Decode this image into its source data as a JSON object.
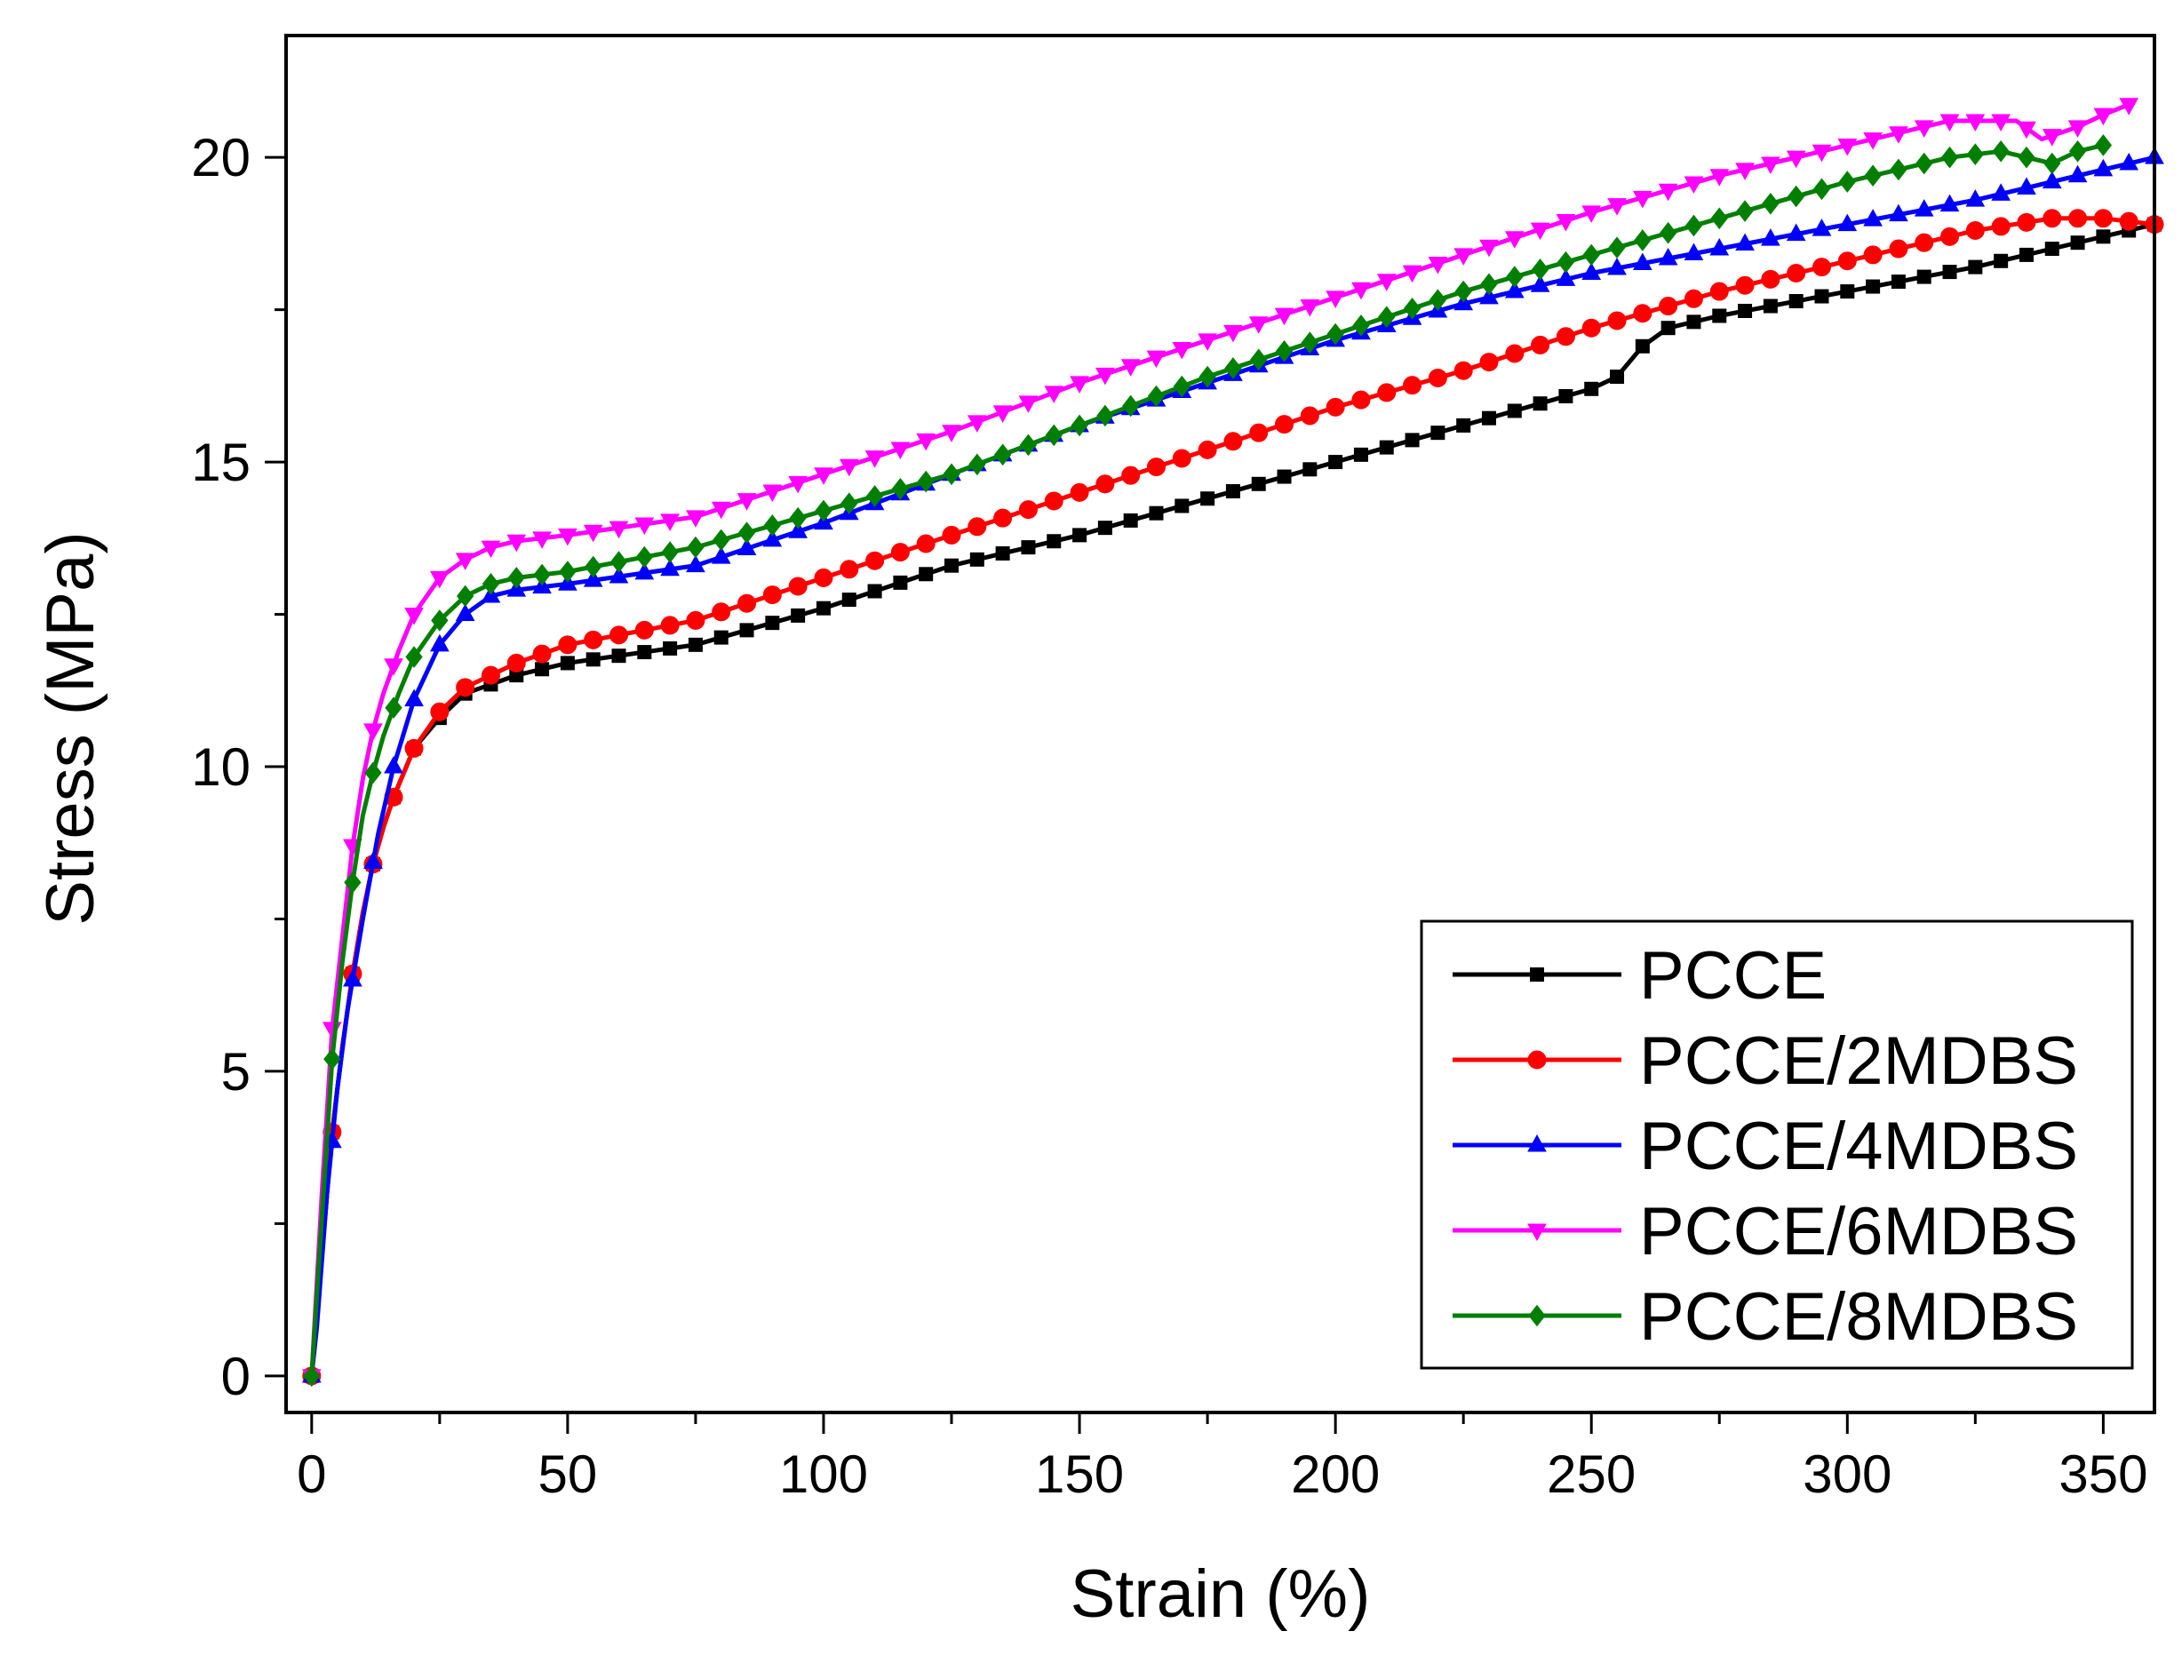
{
  "chart_data": {
    "type": "line",
    "xlabel": "Strain (%)",
    "ylabel": "Stress (MPa)",
    "xlim": [
      -5,
      360
    ],
    "ylim": [
      -0.6,
      22
    ],
    "xticks": [
      0,
      50,
      100,
      150,
      200,
      250,
      300,
      350
    ],
    "yticks": [
      0,
      5,
      10,
      15,
      20
    ],
    "legend": {
      "position": "bottom-right"
    },
    "grid": false,
    "series": [
      {
        "name": "PCCE",
        "color": "#000000",
        "marker": "square",
        "x": [
          0,
          2,
          4,
          6,
          8,
          10,
          12,
          14,
          16,
          18,
          20,
          25,
          30,
          40,
          50,
          75,
          100,
          125,
          150,
          175,
          200,
          225,
          250,
          255,
          260,
          265,
          270,
          275,
          300,
          325,
          340,
          350,
          360
        ],
        "y": [
          0,
          2.0,
          4.0,
          5.4,
          6.6,
          7.6,
          8.4,
          9.0,
          9.5,
          9.9,
          10.3,
          10.8,
          11.2,
          11.5,
          11.7,
          12.0,
          12.6,
          13.3,
          13.8,
          14.4,
          15.0,
          15.6,
          16.2,
          16.4,
          16.9,
          17.2,
          17.3,
          17.4,
          17.8,
          18.2,
          18.5,
          18.7,
          18.9
        ]
      },
      {
        "name": "PCCE/2MDBS",
        "color": "#ff0000",
        "marker": "circle",
        "x": [
          0,
          2,
          4,
          6,
          8,
          10,
          12,
          14,
          16,
          18,
          20,
          25,
          30,
          40,
          50,
          75,
          100,
          125,
          150,
          175,
          200,
          225,
          250,
          275,
          300,
          325,
          340,
          350,
          360
        ],
        "y": [
          0,
          2.0,
          4.0,
          5.4,
          6.6,
          7.6,
          8.4,
          9.0,
          9.5,
          9.9,
          10.3,
          10.9,
          11.3,
          11.7,
          12.0,
          12.4,
          13.1,
          13.8,
          14.5,
          15.2,
          15.9,
          16.5,
          17.2,
          17.8,
          18.3,
          18.8,
          19.0,
          19.0,
          18.9
        ]
      },
      {
        "name": "PCCE/4MDBS",
        "color": "#0000ff",
        "marker": "triangle-up",
        "x": [
          0,
          1,
          3,
          5,
          7,
          10,
          13,
          16,
          20,
          25,
          30,
          35,
          40,
          50,
          75,
          100,
          125,
          150,
          175,
          200,
          225,
          250,
          275,
          300,
          325,
          340,
          350,
          360
        ],
        "y": [
          0,
          0.8,
          3.0,
          4.7,
          6.0,
          7.5,
          8.9,
          10.0,
          11.1,
          12.0,
          12.5,
          12.8,
          12.9,
          13.0,
          13.3,
          14.0,
          14.8,
          15.6,
          16.3,
          17.0,
          17.6,
          18.1,
          18.5,
          18.9,
          19.3,
          19.6,
          19.8,
          20.0
        ]
      },
      {
        "name": "PCCE/6MDBS",
        "color": "#ff00ff",
        "marker": "triangle-down",
        "x": [
          0,
          2,
          4,
          6,
          8,
          10,
          12,
          14,
          17,
          20,
          25,
          30,
          35,
          40,
          50,
          75,
          100,
          125,
          150,
          175,
          200,
          225,
          250,
          275,
          300,
          320,
          333,
          338,
          345,
          350,
          356
        ],
        "y": [
          0,
          3.0,
          5.7,
          7.2,
          8.7,
          9.8,
          10.6,
          11.2,
          11.9,
          12.5,
          13.1,
          13.4,
          13.6,
          13.7,
          13.8,
          14.1,
          14.8,
          15.5,
          16.3,
          17.0,
          17.7,
          18.4,
          19.1,
          19.7,
          20.2,
          20.6,
          20.6,
          20.3,
          20.5,
          20.7,
          20.9
        ]
      },
      {
        "name": "PCCE/8MDBS",
        "color": "#007f00",
        "marker": "diamond",
        "x": [
          0,
          2,
          4,
          6,
          8,
          10,
          12,
          14,
          17,
          20,
          25,
          30,
          35,
          40,
          50,
          75,
          100,
          125,
          150,
          175,
          200,
          225,
          250,
          275,
          300,
          320,
          330,
          335,
          340,
          345,
          350
        ],
        "y": [
          0,
          2.6,
          5.2,
          6.8,
          8.1,
          9.2,
          9.9,
          10.5,
          11.2,
          11.8,
          12.4,
          12.8,
          13.0,
          13.1,
          13.2,
          13.6,
          14.2,
          14.8,
          15.6,
          16.4,
          17.1,
          17.8,
          18.4,
          19.0,
          19.6,
          20.0,
          20.1,
          20.0,
          19.9,
          20.1,
          20.2
        ]
      }
    ]
  }
}
